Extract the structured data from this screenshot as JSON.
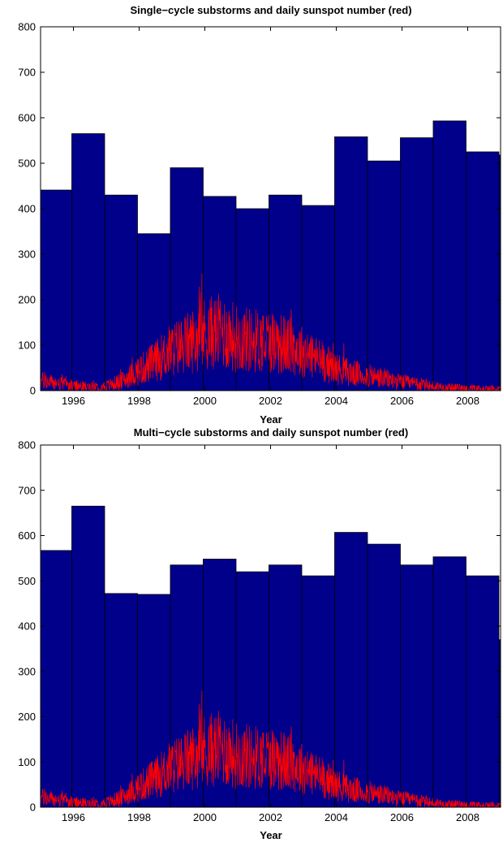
{
  "colors": {
    "bars": "#00008b",
    "sunspot_line": "#ff0000",
    "bar_edge": "#000000"
  },
  "chart_data": [
    {
      "type": "bar",
      "title": "Single−cycle substorms and daily sunspot number (red)",
      "xlabel": "Year",
      "ylabel": "",
      "xlim": [
        1995,
        2009
      ],
      "ylim": [
        0,
        800
      ],
      "xticks": [
        1996,
        1998,
        2000,
        2002,
        2004,
        2006,
        2008
      ],
      "yticks": [
        0,
        100,
        200,
        300,
        400,
        500,
        600,
        700,
        800
      ],
      "bins": [
        {
          "start": 1995.0,
          "end": 1995.95,
          "value": 441
        },
        {
          "start": 1995.95,
          "end": 1996.95,
          "value": 565
        },
        {
          "start": 1996.95,
          "end": 1997.95,
          "value": 430
        },
        {
          "start": 1997.95,
          "end": 1998.95,
          "value": 345
        },
        {
          "start": 1998.95,
          "end": 1999.95,
          "value": 490
        },
        {
          "start": 1999.95,
          "end": 2000.95,
          "value": 427
        },
        {
          "start": 2000.95,
          "end": 2001.95,
          "value": 400
        },
        {
          "start": 2001.95,
          "end": 2002.95,
          "value": 430
        },
        {
          "start": 2002.95,
          "end": 2003.95,
          "value": 407
        },
        {
          "start": 2003.95,
          "end": 2004.95,
          "value": 558
        },
        {
          "start": 2004.95,
          "end": 2005.95,
          "value": 505
        },
        {
          "start": 2005.95,
          "end": 2006.95,
          "value": 556
        },
        {
          "start": 2006.95,
          "end": 2007.95,
          "value": 593
        },
        {
          "start": 2007.95,
          "end": 2008.95,
          "value": 525
        },
        {
          "start": 2008.95,
          "end": 2009.0,
          "value": 518
        }
      ],
      "sunspot_trend": {
        "x": [
          1995.0,
          1995.5,
          1996.0,
          1996.5,
          1997.0,
          1997.5,
          1998.0,
          1998.5,
          1999.0,
          1999.5,
          2000.0,
          2000.5,
          2001.0,
          2001.5,
          2002.0,
          2002.5,
          2003.0,
          2003.5,
          2004.0,
          2004.5,
          2005.0,
          2005.5,
          2006.0,
          2006.5,
          2007.0,
          2007.5,
          2008.0,
          2008.5,
          2009.0
        ],
        "y": [
          22,
          16,
          10,
          8,
          10,
          22,
          45,
          65,
          90,
          105,
          125,
          130,
          115,
          110,
          110,
          100,
          85,
          68,
          48,
          38,
          32,
          26,
          18,
          14,
          9,
          6,
          4,
          3,
          3
        ]
      }
    },
    {
      "type": "bar",
      "title": "Multi−cycle substorms and daily sunspot number (red)",
      "xlabel": "Year",
      "ylabel": "",
      "xlim": [
        1995,
        2009
      ],
      "ylim": [
        0,
        800
      ],
      "xticks": [
        1996,
        1998,
        2000,
        2002,
        2004,
        2006,
        2008
      ],
      "yticks": [
        0,
        100,
        200,
        300,
        400,
        500,
        600,
        700,
        800
      ],
      "bins": [
        {
          "start": 1995.0,
          "end": 1995.95,
          "value": 567
        },
        {
          "start": 1995.95,
          "end": 1996.95,
          "value": 665
        },
        {
          "start": 1996.95,
          "end": 1997.95,
          "value": 472
        },
        {
          "start": 1997.95,
          "end": 1998.95,
          "value": 470
        },
        {
          "start": 1998.95,
          "end": 1999.95,
          "value": 535
        },
        {
          "start": 1999.95,
          "end": 2000.95,
          "value": 548
        },
        {
          "start": 2000.95,
          "end": 2001.95,
          "value": 520
        },
        {
          "start": 2001.95,
          "end": 2002.95,
          "value": 535
        },
        {
          "start": 2002.95,
          "end": 2003.95,
          "value": 511
        },
        {
          "start": 2003.95,
          "end": 2004.95,
          "value": 607
        },
        {
          "start": 2004.95,
          "end": 2005.95,
          "value": 581
        },
        {
          "start": 2005.95,
          "end": 2006.95,
          "value": 535
        },
        {
          "start": 2006.95,
          "end": 2007.95,
          "value": 553
        },
        {
          "start": 2007.95,
          "end": 2008.95,
          "value": 511
        },
        {
          "start": 2008.95,
          "end": 2009.0,
          "value": 370
        }
      ],
      "sunspot_trend": {
        "x": [
          1995.0,
          1995.5,
          1996.0,
          1996.5,
          1997.0,
          1997.5,
          1998.0,
          1998.5,
          1999.0,
          1999.5,
          2000.0,
          2000.5,
          2001.0,
          2001.5,
          2002.0,
          2002.5,
          2003.0,
          2003.5,
          2004.0,
          2004.5,
          2005.0,
          2005.5,
          2006.0,
          2006.5,
          2007.0,
          2007.5,
          2008.0,
          2008.5,
          2009.0
        ],
        "y": [
          22,
          16,
          10,
          8,
          10,
          22,
          45,
          65,
          90,
          105,
          125,
          130,
          115,
          110,
          110,
          100,
          85,
          68,
          48,
          38,
          32,
          26,
          18,
          14,
          9,
          6,
          4,
          3,
          3
        ]
      }
    }
  ]
}
